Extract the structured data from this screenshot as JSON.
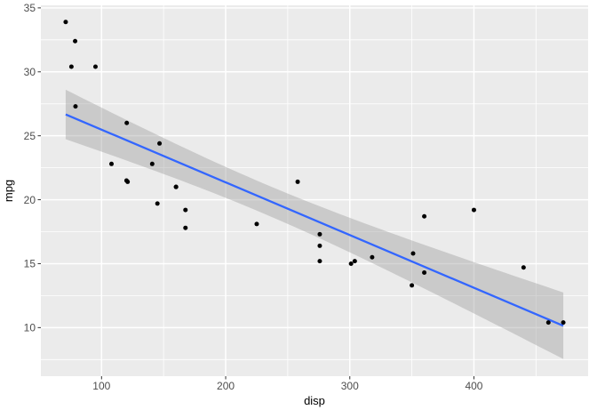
{
  "chart_data": {
    "type": "scatter",
    "title": "",
    "xlabel": "disp",
    "ylabel": "mpg",
    "xlim": [
      51.1,
      492.0
    ],
    "ylim": [
      6.2,
      35.2
    ],
    "x_major_ticks": [
      100,
      200,
      300,
      400
    ],
    "x_minor_ticks": [
      150,
      250,
      350,
      450
    ],
    "y_major_ticks": [
      10,
      15,
      20,
      25,
      30,
      35
    ],
    "y_minor_ticks": [
      7.5,
      12.5,
      17.5,
      22.5,
      27.5,
      32.5
    ],
    "grid": "on",
    "legend": "none",
    "points": [
      [
        160.0,
        21.0
      ],
      [
        160.0,
        21.0
      ],
      [
        108.0,
        22.8
      ],
      [
        258.0,
        21.4
      ],
      [
        360.0,
        18.7
      ],
      [
        225.0,
        18.1
      ],
      [
        360.0,
        14.3
      ],
      [
        146.7,
        24.4
      ],
      [
        140.8,
        22.8
      ],
      [
        167.6,
        19.2
      ],
      [
        167.6,
        17.8
      ],
      [
        275.8,
        16.4
      ],
      [
        275.8,
        17.3
      ],
      [
        275.8,
        15.2
      ],
      [
        472.0,
        10.4
      ],
      [
        460.0,
        10.4
      ],
      [
        440.0,
        14.7
      ],
      [
        78.7,
        32.4
      ],
      [
        75.7,
        30.4
      ],
      [
        71.1,
        33.9
      ],
      [
        120.1,
        21.5
      ],
      [
        318.0,
        15.5
      ],
      [
        304.0,
        15.2
      ],
      [
        350.0,
        13.3
      ],
      [
        400.0,
        19.2
      ],
      [
        79.0,
        27.3
      ],
      [
        120.3,
        26.0
      ],
      [
        95.1,
        30.4
      ],
      [
        351.0,
        15.8
      ],
      [
        145.0,
        19.7
      ],
      [
        301.0,
        15.0
      ],
      [
        121.0,
        21.4
      ]
    ],
    "smooth": {
      "method": "lm",
      "level": 0.95,
      "t_value": 2.0423,
      "x_range": [
        71.1,
        472.0
      ]
    },
    "colors": {
      "panel_bg": "#EBEBEB",
      "grid_major": "#FFFFFF",
      "grid_minor": "#FFFFFF",
      "point": "#000000",
      "smooth_line": "#3366FF",
      "ribbon": "#999999",
      "ribbon_alpha": 0.4,
      "tick_label": "#4D4D4D",
      "tick_mark": "#333333",
      "axis_title": "#000000"
    }
  }
}
